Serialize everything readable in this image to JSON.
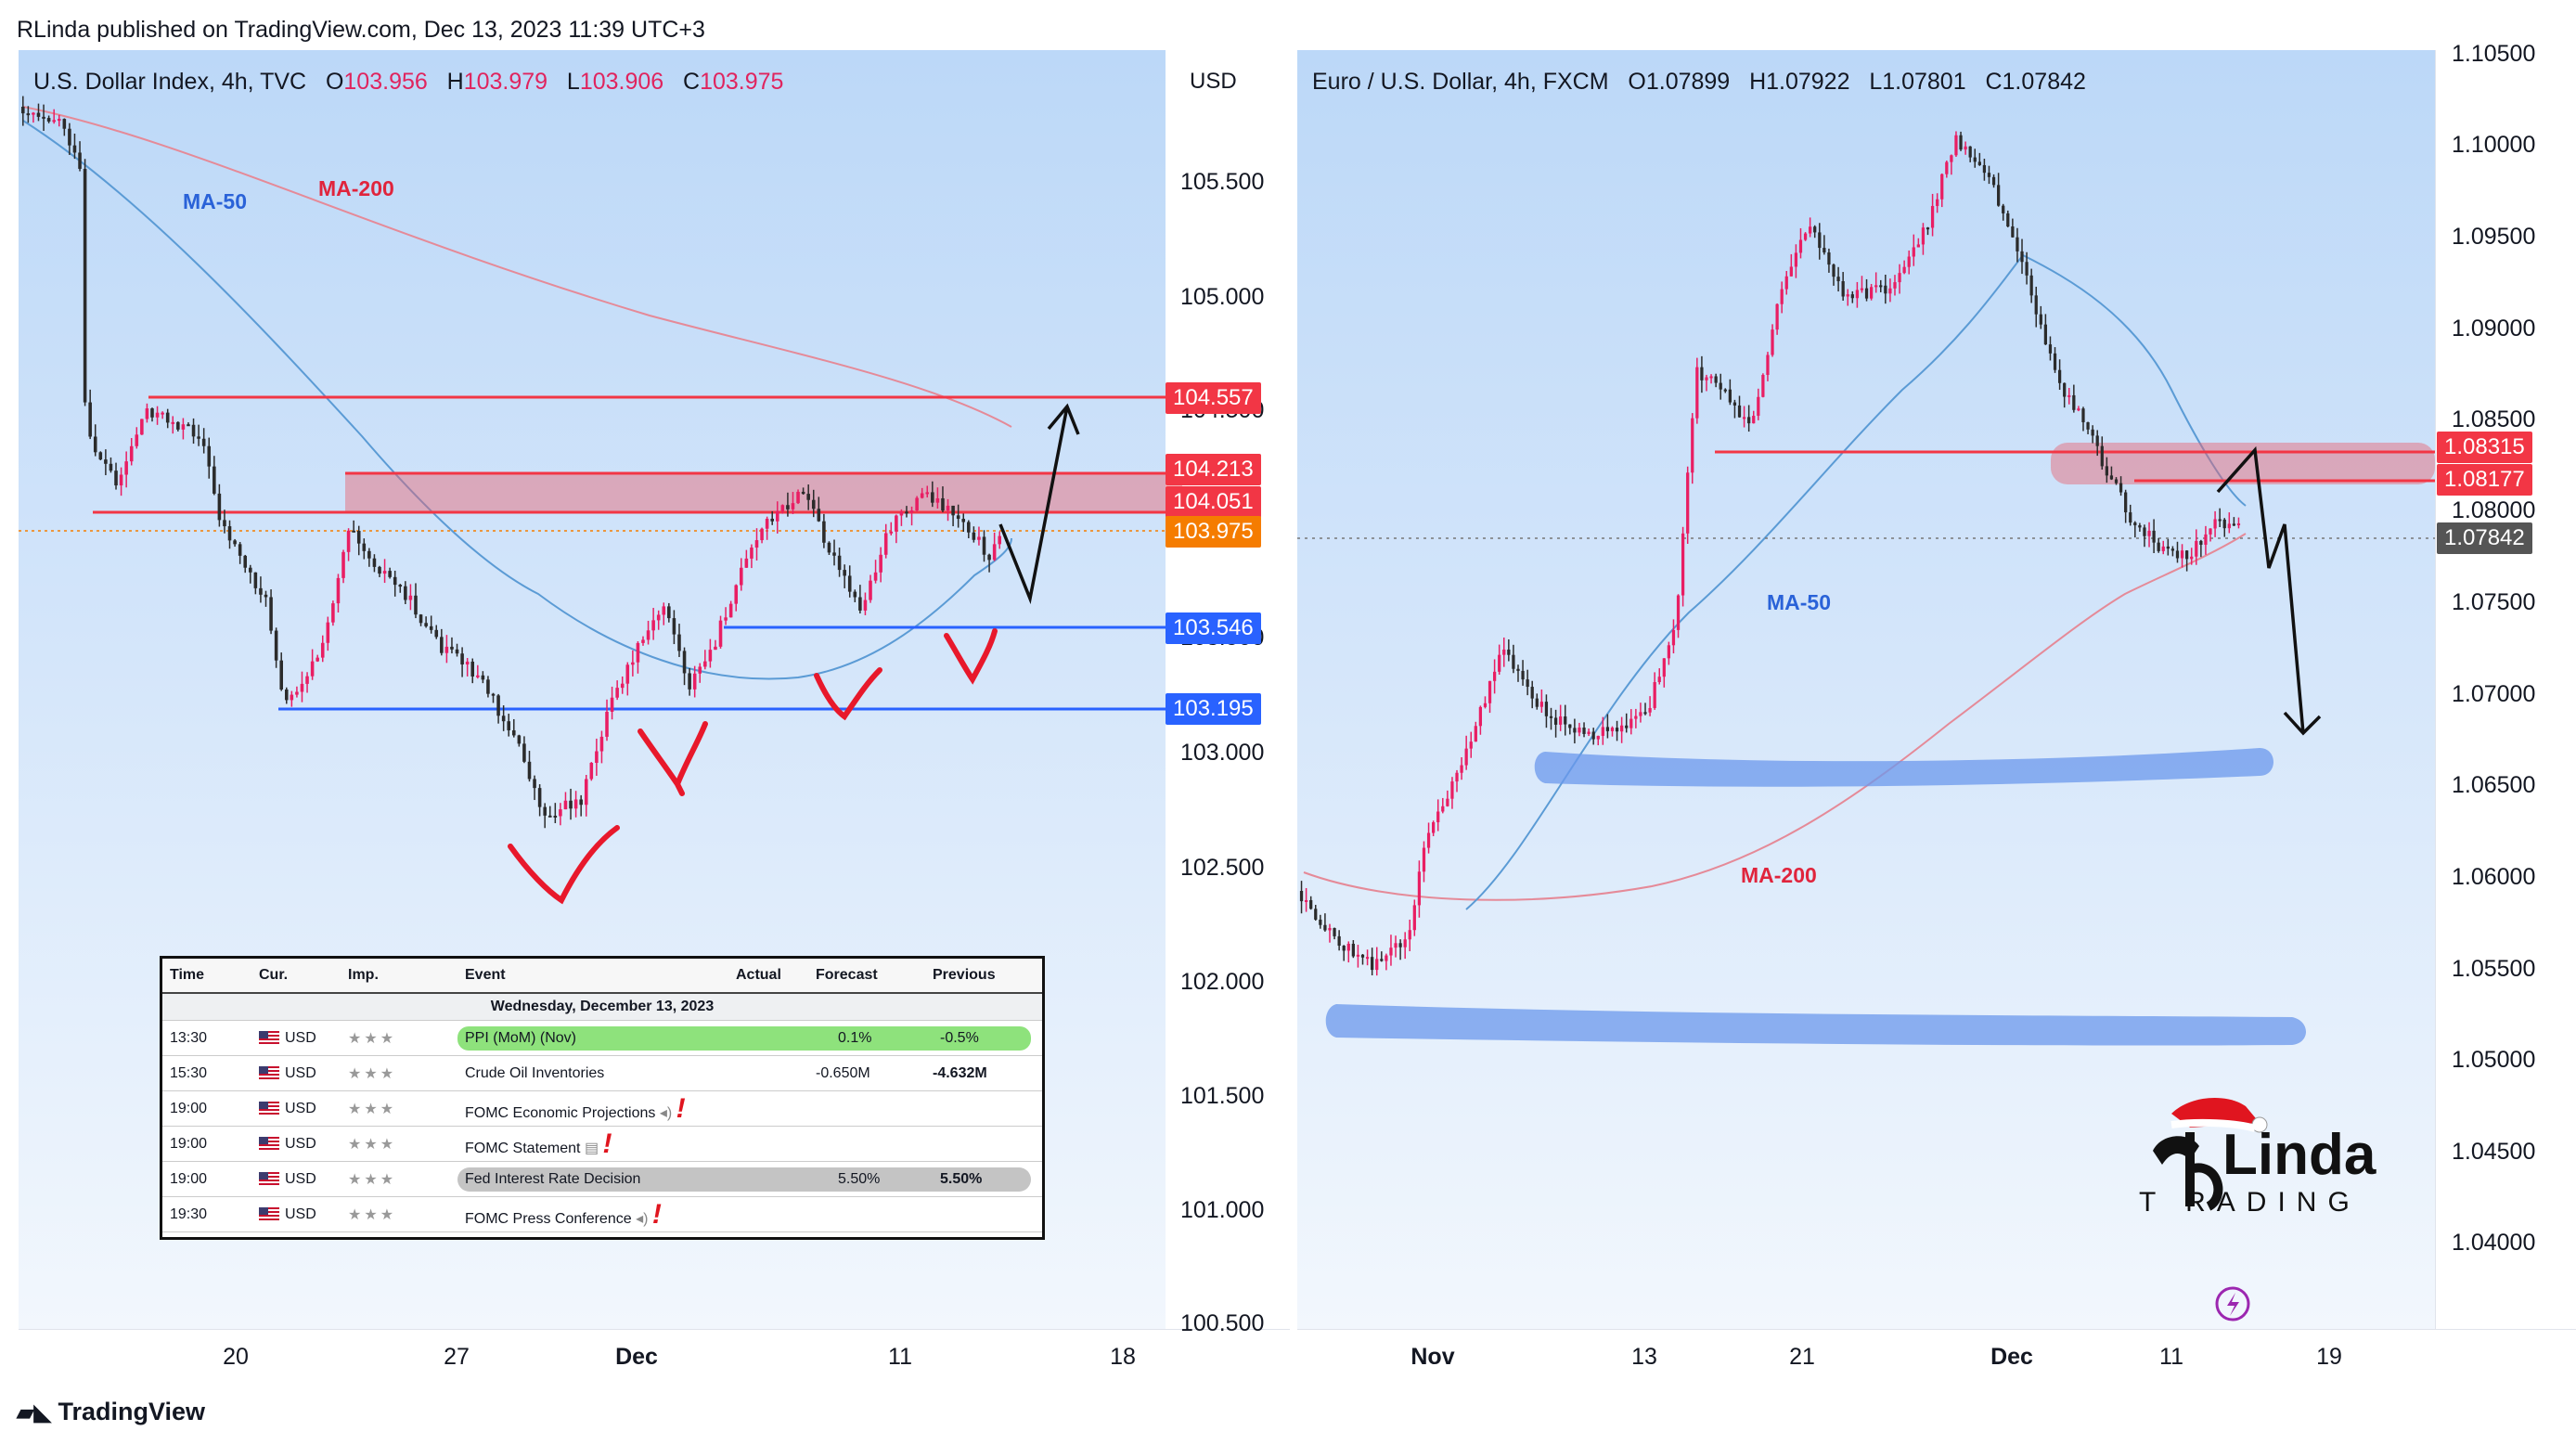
{
  "header": {
    "publisher_line": "RLinda published on TradingView.com, Dec 13, 2023 11:39 UTC+3"
  },
  "footer": {
    "logo_text": "TradingView"
  },
  "left_chart": {
    "legend": {
      "symbol": "U.S. Dollar Index, 4h, TVC",
      "o_label": "O",
      "o": "103.956",
      "h_label": "H",
      "h": "103.979",
      "l_label": "L",
      "l": "103.906",
      "c_label": "C",
      "c": "103.975"
    },
    "currency_button": "USD",
    "ma50_label": "MA-50",
    "ma200_label": "MA-200",
    "price_ticks": [
      "105.500",
      "105.000",
      "104.500",
      "103.500",
      "103.000",
      "102.500",
      "102.000",
      "101.500",
      "101.000",
      "100.500"
    ],
    "price_labels": [
      {
        "text": "104.557",
        "color": "#f23645"
      },
      {
        "text": "104.213",
        "color": "#f23645"
      },
      {
        "text": "104.051",
        "color": "#f23645"
      },
      {
        "text": "103.975",
        "color": "#f57c00"
      },
      {
        "text": "103.546",
        "color": "#2962ff"
      },
      {
        "text": "103.195",
        "color": "#2962ff"
      }
    ],
    "time_ticks": [
      "20",
      "27",
      "Dec",
      "11",
      "18"
    ]
  },
  "right_chart": {
    "legend": {
      "symbol": "Euro / U.S. Dollar, 4h, FXCM",
      "o_label": "O",
      "o": "1.07899",
      "h_label": "H",
      "h": "1.07922",
      "l_label": "L",
      "l": "1.07801",
      "c_label": "C",
      "c": "1.07842"
    },
    "ma50_label": "MA-50",
    "ma200_label": "MA-200",
    "price_ticks": [
      "1.10500",
      "1.10000",
      "1.09500",
      "1.09000",
      "1.08500",
      "1.08000",
      "1.07500",
      "1.07000",
      "1.06500",
      "1.06000",
      "1.05500",
      "1.05000",
      "1.04500",
      "1.04000"
    ],
    "price_labels": [
      {
        "text": "1.08315",
        "color": "#f23645"
      },
      {
        "text": "1.08177",
        "color": "#f23645"
      },
      {
        "text": "1.07842",
        "color": "#555555"
      }
    ],
    "time_ticks": [
      "Nov",
      "13",
      "21",
      "Dec",
      "11",
      "19"
    ]
  },
  "calendar": {
    "headers": {
      "time": "Time",
      "cur": "Cur.",
      "imp": "Imp.",
      "event": "Event",
      "actual": "Actual",
      "forecast": "Forecast",
      "previous": "Previous"
    },
    "date_row": "Wednesday, December 13, 2023",
    "rows": [
      {
        "time": "13:30",
        "cur": "USD",
        "stars": "★★★",
        "event": "PPI (MoM) (Nov)",
        "actual": "",
        "forecast": "0.1%",
        "previous": "-0.5%"
      },
      {
        "time": "15:30",
        "cur": "USD",
        "stars": "★★★",
        "event": "Crude Oil Inventories",
        "actual": "",
        "forecast": "-0.650M",
        "previous": "-4.632M"
      },
      {
        "time": "19:00",
        "cur": "USD",
        "stars": "★★★",
        "event": "FOMC Economic Projections",
        "actual": "",
        "forecast": "",
        "previous": ""
      },
      {
        "time": "19:00",
        "cur": "USD",
        "stars": "★★★",
        "event": "FOMC Statement",
        "actual": "",
        "forecast": "",
        "previous": ""
      },
      {
        "time": "19:00",
        "cur": "USD",
        "stars": "★★★",
        "event": "Fed Interest Rate Decision",
        "actual": "",
        "forecast": "5.50%",
        "previous": "5.50%"
      },
      {
        "time": "19:30",
        "cur": "USD",
        "stars": "★★★",
        "event": "FOMC Press Conference",
        "actual": "",
        "forecast": "",
        "previous": ""
      }
    ]
  },
  "chart_data": [
    {
      "type": "candlestick",
      "title": "U.S. Dollar Index, 4h, TVC",
      "ohlc": {
        "open": 103.956,
        "high": 103.979,
        "low": 103.906,
        "close": 103.975
      },
      "ylim": [
        100.5,
        105.85
      ],
      "x_ticks": [
        "20",
        "27",
        "Dec",
        "11",
        "18"
      ],
      "series": [
        {
          "name": "MA-50",
          "color": "#5b9bd5"
        },
        {
          "name": "MA-200",
          "color": "#e89aa6"
        }
      ],
      "price_levels": [
        104.557,
        104.213,
        104.051,
        103.975,
        103.546,
        103.195
      ],
      "current_price": 103.975
    },
    {
      "type": "candlestick",
      "title": "Euro / U.S. Dollar, 4h, FXCM",
      "ohlc": {
        "open": 1.07899,
        "high": 1.07922,
        "low": 1.07801,
        "close": 1.07842
      },
      "ylim": [
        1.035,
        1.105
      ],
      "x_ticks": [
        "Nov",
        "13",
        "21",
        "Dec",
        "11",
        "19"
      ],
      "series": [
        {
          "name": "MA-50",
          "color": "#5b9bd5"
        },
        {
          "name": "MA-200",
          "color": "#e89aa6"
        }
      ],
      "price_levels": [
        1.08315,
        1.08177,
        1.07842
      ],
      "current_price": 1.07842
    }
  ]
}
